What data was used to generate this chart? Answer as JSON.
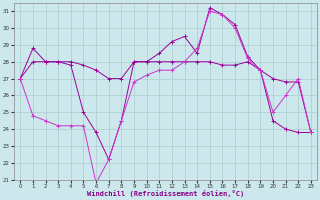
{
  "xlabel": "Windchill (Refroidissement éolien,°C)",
  "xlim": [
    -0.5,
    23.5
  ],
  "ylim": [
    21,
    31.5
  ],
  "yticks": [
    21,
    22,
    23,
    24,
    25,
    26,
    27,
    28,
    29,
    30,
    31
  ],
  "xticks": [
    0,
    1,
    2,
    3,
    4,
    5,
    6,
    7,
    8,
    9,
    10,
    11,
    12,
    13,
    14,
    15,
    16,
    17,
    18,
    19,
    20,
    21,
    22,
    23
  ],
  "background_color": "#cce8ec",
  "grid_color": "#aacccc",
  "series1_color": "#990099",
  "series2_color": "#990099",
  "series3_color": "#cc33cc",
  "series1_x": [
    0,
    1,
    2,
    3,
    4,
    5,
    6,
    7,
    8,
    9,
    10,
    11,
    12,
    13,
    14,
    15,
    16,
    17,
    18,
    19,
    20,
    21,
    22,
    23
  ],
  "series1_y": [
    27.0,
    28.8,
    28.0,
    28.0,
    28.0,
    27.8,
    27.5,
    27.0,
    27.0,
    28.0,
    28.0,
    28.5,
    29.2,
    29.5,
    28.5,
    31.2,
    30.8,
    30.2,
    28.3,
    27.5,
    27.0,
    26.8,
    26.8,
    23.8
  ],
  "series2_x": [
    0,
    1,
    2,
    3,
    4,
    5,
    6,
    7,
    8,
    9,
    10,
    11,
    12,
    13,
    14,
    15,
    16,
    17,
    18,
    19,
    20,
    21,
    22,
    23
  ],
  "series2_y": [
    27.0,
    28.0,
    28.0,
    28.0,
    27.8,
    25.0,
    23.8,
    22.2,
    24.5,
    28.0,
    28.0,
    28.0,
    28.0,
    28.0,
    28.0,
    28.0,
    27.8,
    27.8,
    28.0,
    27.5,
    24.5,
    24.0,
    23.8,
    23.8
  ],
  "series3_x": [
    0,
    1,
    2,
    3,
    4,
    5,
    6,
    7,
    8,
    9,
    10,
    11,
    12,
    13,
    14,
    15,
    16,
    17,
    18,
    19,
    20,
    21,
    22,
    23
  ],
  "series3_y": [
    27.0,
    24.8,
    24.5,
    24.2,
    24.2,
    24.2,
    20.8,
    22.2,
    24.5,
    26.8,
    27.2,
    27.5,
    27.5,
    28.0,
    28.8,
    31.0,
    30.8,
    30.0,
    28.2,
    27.5,
    25.0,
    26.0,
    27.0,
    23.8
  ]
}
